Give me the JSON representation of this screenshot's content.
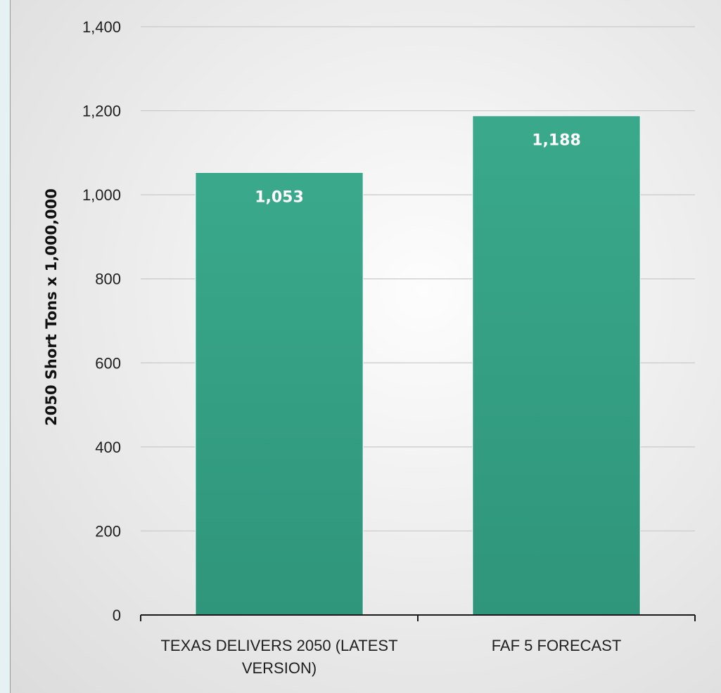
{
  "chart_data": {
    "type": "bar",
    "categories": [
      "TEXAS DELIVERS 2050 (LATEST VERSION)",
      "FAF 5 FORECAST"
    ],
    "category_lines": [
      [
        "TEXAS DELIVERS 2050 (LATEST",
        "VERSION)"
      ],
      [
        "FAF 5 FORECAST"
      ]
    ],
    "values": [
      1053,
      1188
    ],
    "data_labels": [
      "1,053",
      "1,188"
    ],
    "title": "",
    "xlabel": "",
    "ylabel": "2050 Short Tons x 1,000,000",
    "ylim": [
      0,
      1400
    ],
    "yticks": [
      0,
      200,
      400,
      600,
      800,
      1000,
      1200,
      1400
    ],
    "ytick_labels": [
      "0",
      "200",
      "400",
      "600",
      "800",
      "1,000",
      "1,200",
      "1,400"
    ],
    "grid": true,
    "legend": "none",
    "colors": {
      "bar": "#36a386",
      "bar_light": "#3aa98b",
      "bar_dark": "#2f957b"
    }
  }
}
